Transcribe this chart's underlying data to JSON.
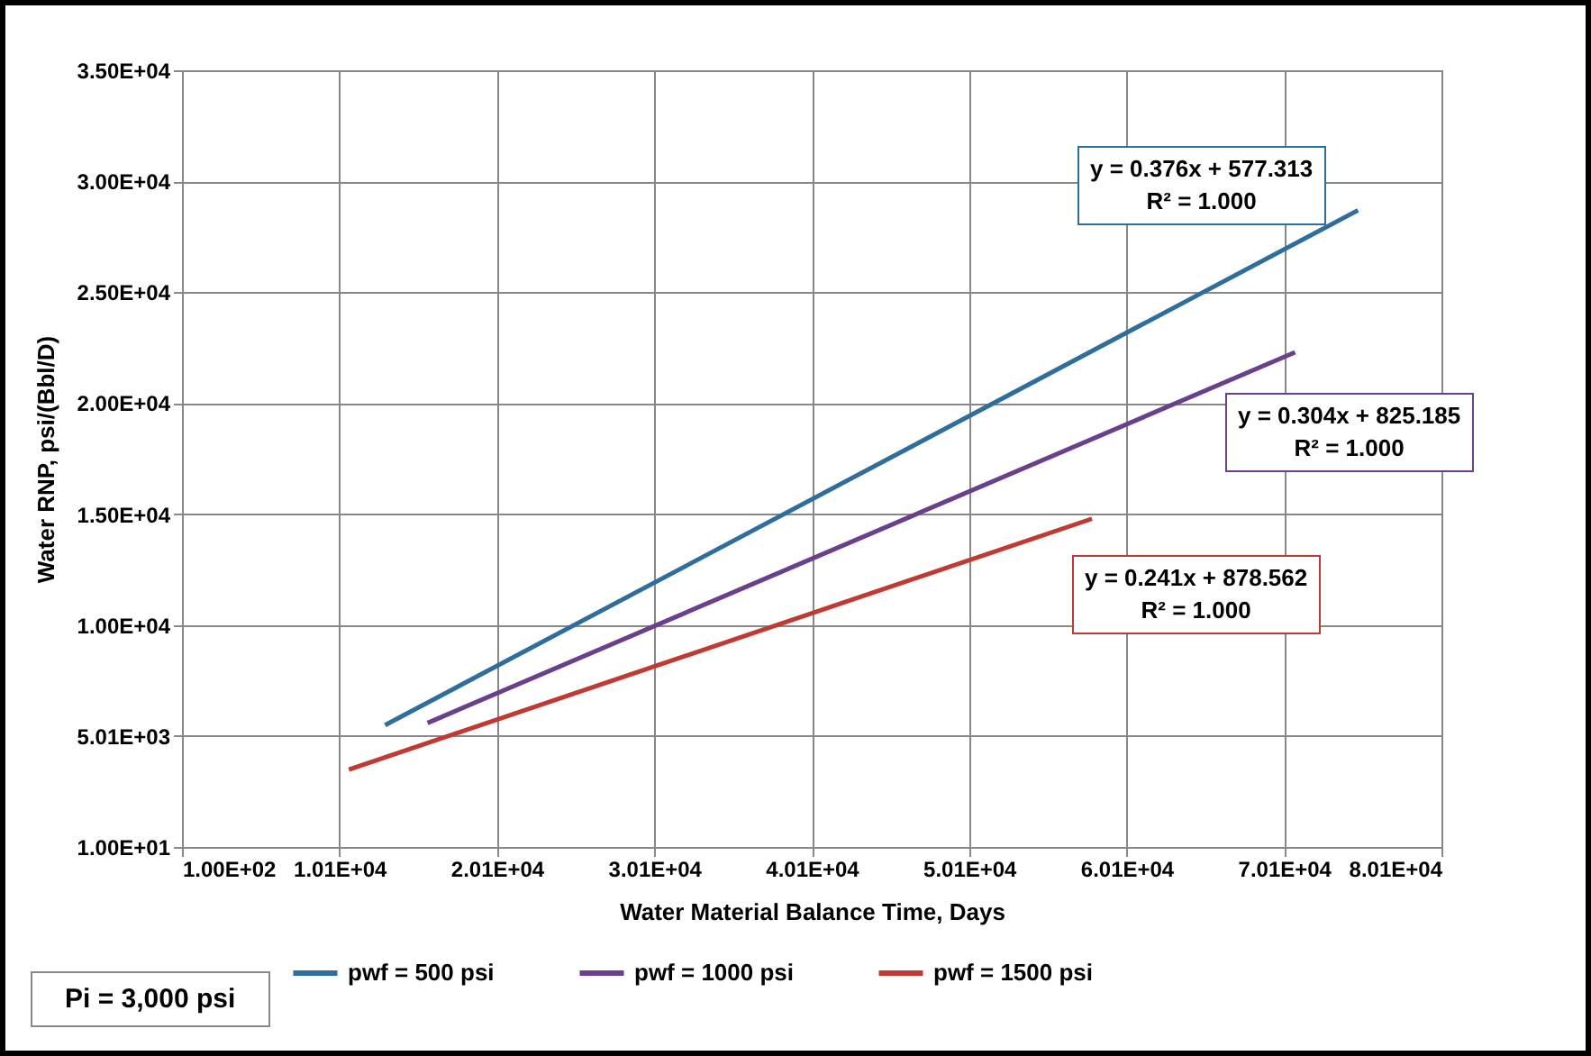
{
  "chart_data": {
    "type": "line",
    "xlabel": "Water Material Balance Time, Days",
    "ylabel": "Water RNP, psi/(Bbl/D)",
    "xlim": [
      100,
      80100
    ],
    "ylim": [
      10,
      35010
    ],
    "xticks": [
      {
        "value": 100,
        "label": "1.00E+02"
      },
      {
        "value": 10100,
        "label": "1.01E+04"
      },
      {
        "value": 20100,
        "label": "2.01E+04"
      },
      {
        "value": 30100,
        "label": "3.01E+04"
      },
      {
        "value": 40100,
        "label": "4.01E+04"
      },
      {
        "value": 50100,
        "label": "5.01E+04"
      },
      {
        "value": 60100,
        "label": "6.01E+04"
      },
      {
        "value": 70100,
        "label": "7.01E+04"
      },
      {
        "value": 80100,
        "label": "8.01E+04"
      }
    ],
    "yticks": [
      {
        "value": 10,
        "label": "1.00E+01"
      },
      {
        "value": 5010,
        "label": "5.01E+03"
      },
      {
        "value": 10010,
        "label": "1.00E+04"
      },
      {
        "value": 15010,
        "label": "1.50E+04"
      },
      {
        "value": 20010,
        "label": "2.00E+04"
      },
      {
        "value": 25010,
        "label": "2.50E+04"
      },
      {
        "value": 30010,
        "label": "3.00E+04"
      },
      {
        "value": 35010,
        "label": "3.50E+04"
      }
    ],
    "grid": true,
    "legend": "bottom",
    "series": [
      {
        "name": "pwf = 500 psi",
        "color": "#2f6e9c",
        "x": [
          13000,
          74800
        ],
        "values": [
          5500,
          28700
        ]
      },
      {
        "name": "pwf = 1000 psi",
        "color": "#6a3f8c",
        "x": [
          15700,
          70800
        ],
        "values": [
          5600,
          22300
        ]
      },
      {
        "name": "pwf = 1500 psi",
        "color": "#c03a33",
        "x": [
          10700,
          57900
        ],
        "values": [
          3500,
          14800
        ]
      }
    ],
    "annotations": [
      "y = 0.376x + 577.313\nR² = 1.000",
      "y = 0.304x + 825.185\nR² = 1.000",
      "y = 0.241x + 878.562\nR² = 1.000",
      "Pi = 3,000 psi"
    ]
  }
}
